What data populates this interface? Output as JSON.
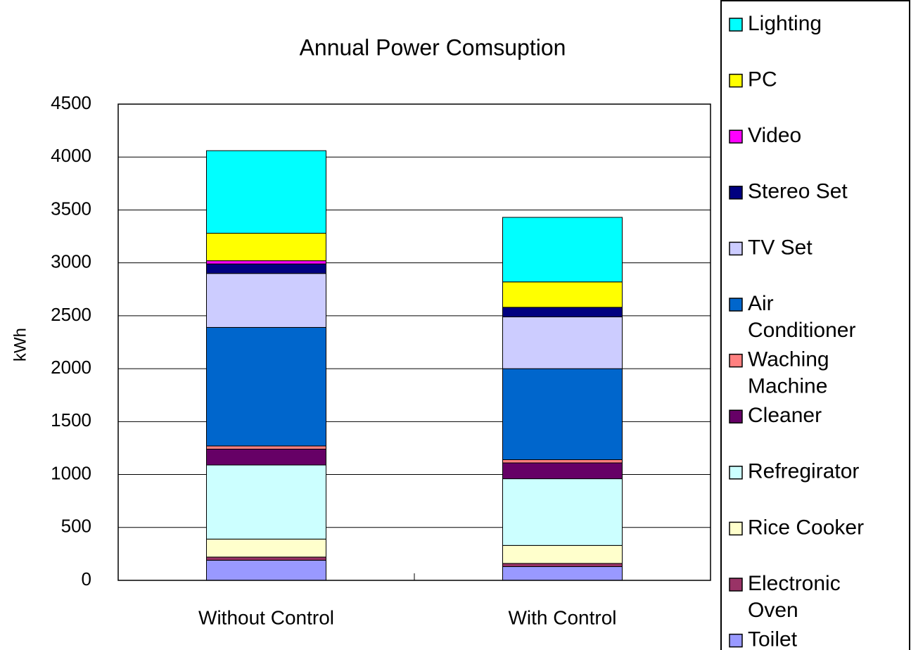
{
  "chart_data": {
    "type": "bar",
    "stacked": true,
    "title": "Annual Power Comsuption",
    "ylabel": "kWh",
    "categories": [
      "Without Control",
      "With Control"
    ],
    "series": [
      {
        "name": "Toilet",
        "color": "#9999ff",
        "values": [
          190,
          130
        ]
      },
      {
        "name": "Electronic Oven",
        "color": "#993366",
        "values": [
          30,
          30
        ]
      },
      {
        "name": "Rice Cooker",
        "color": "#ffffcc",
        "values": [
          170,
          170
        ]
      },
      {
        "name": "Refregirator",
        "color": "#ccffff",
        "values": [
          700,
          630
        ]
      },
      {
        "name": "Cleaner",
        "color": "#660066",
        "values": [
          150,
          150
        ]
      },
      {
        "name": "Waching Machine",
        "color": "#ff8080",
        "values": [
          30,
          30
        ]
      },
      {
        "name": "Air Conditioner",
        "color": "#0066cc",
        "values": [
          1120,
          860
        ]
      },
      {
        "name": "TV Set",
        "color": "#ccccff",
        "values": [
          510,
          490
        ]
      },
      {
        "name": "Stereo Set",
        "color": "#000080",
        "values": [
          90,
          90
        ]
      },
      {
        "name": "Video",
        "color": "#ff00ff",
        "values": [
          30,
          0
        ]
      },
      {
        "name": "PC",
        "color": "#ffff00",
        "values": [
          260,
          240
        ]
      },
      {
        "name": "Lighting",
        "color": "#00ffff",
        "values": [
          780,
          610
        ]
      }
    ],
    "ylim": [
      0,
      4500
    ],
    "yticks": [
      0,
      500,
      1000,
      1500,
      2000,
      2500,
      3000,
      3500,
      4000,
      4500
    ],
    "grid": true,
    "legend": "right"
  }
}
